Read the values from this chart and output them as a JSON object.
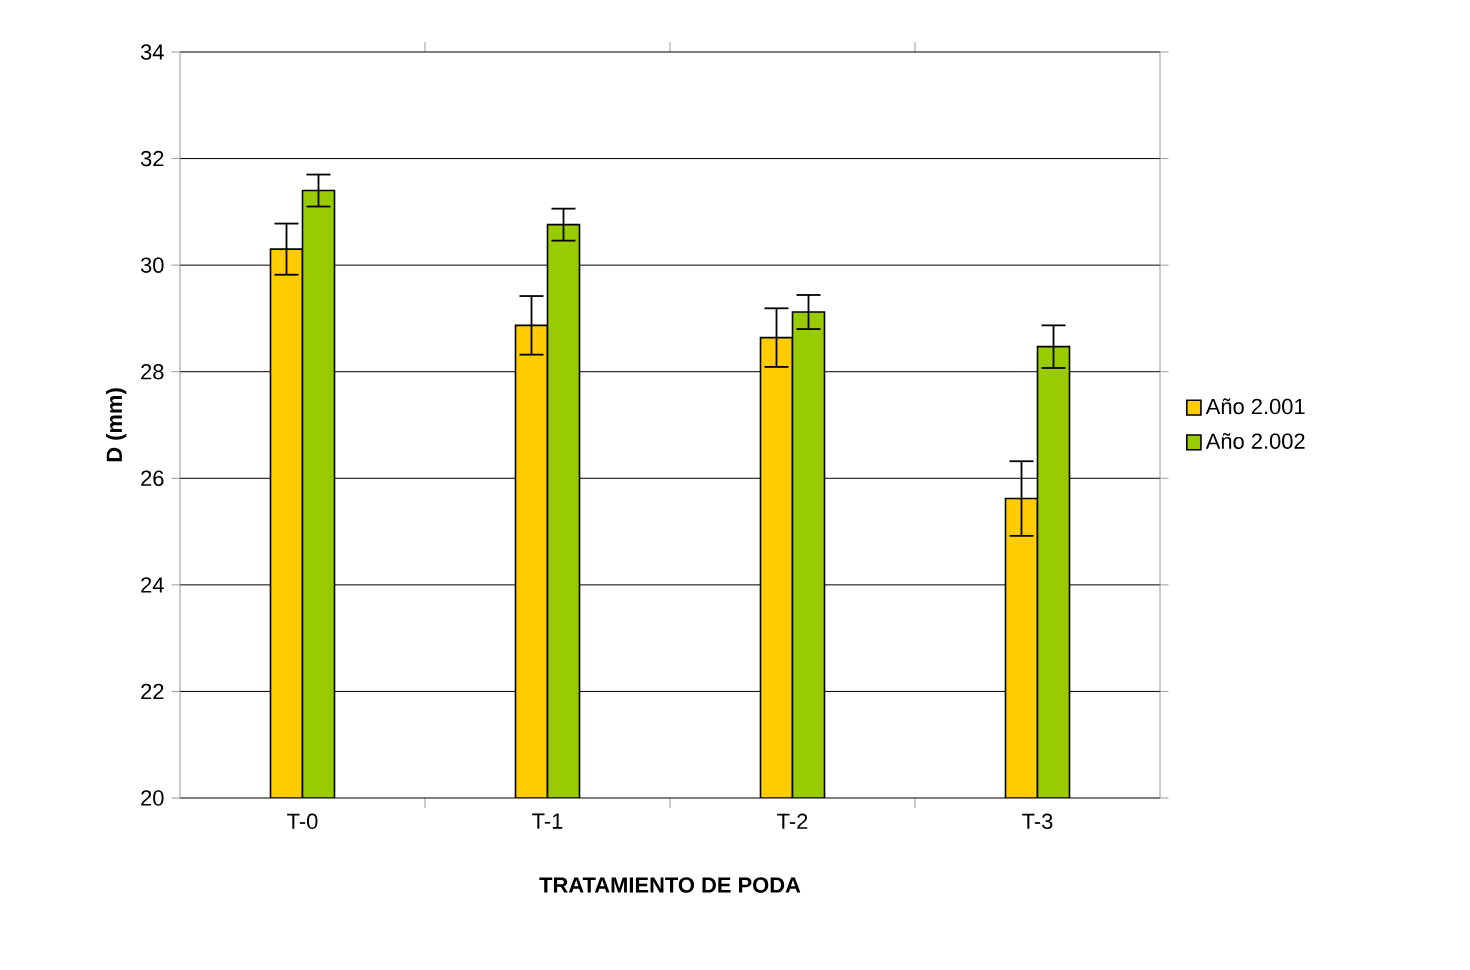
{
  "chart_data": {
    "type": "bar",
    "xlabel": "TRATAMIENTO DE PODA",
    "ylabel": "D (mm)",
    "categories": [
      "T-0",
      "T-1",
      "T-2",
      "T-3"
    ],
    "series": [
      {
        "name": "Año 2.001",
        "color": "#ffcc00",
        "values": [
          30.3,
          28.87,
          28.64,
          25.62
        ],
        "errors": [
          0.48,
          0.55,
          0.55,
          0.7
        ]
      },
      {
        "name": "Año 2.002",
        "color": "#99cc00",
        "values": [
          31.4,
          30.76,
          29.12,
          28.47
        ],
        "errors": [
          0.3,
          0.3,
          0.32,
          0.4
        ]
      }
    ],
    "ylim": [
      20,
      34
    ],
    "yticks": [
      20,
      22,
      24,
      26,
      28,
      30,
      32,
      34
    ],
    "grid": "y",
    "legend": "right"
  }
}
